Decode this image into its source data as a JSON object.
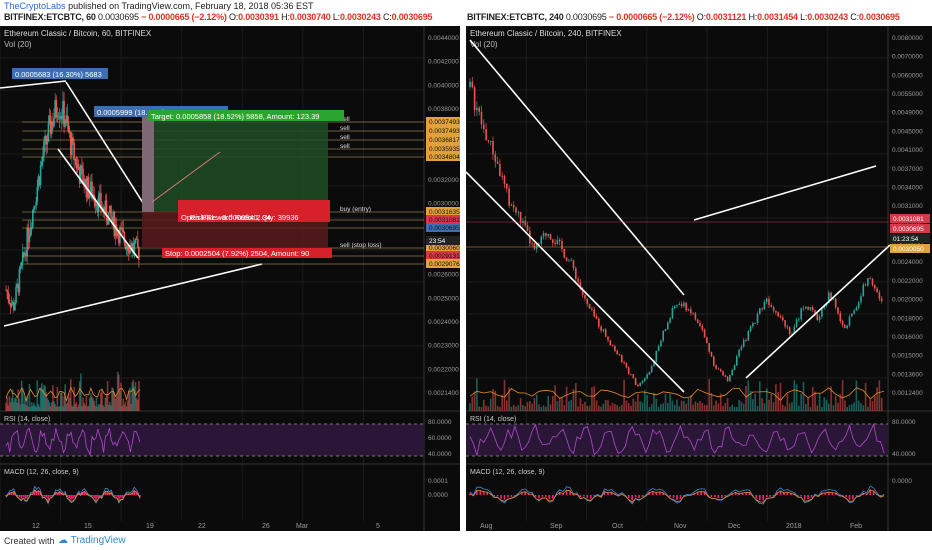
{
  "header": {
    "author": "TheCryptoLabs",
    "published": "published on TradingView.com, February 18, 2018 05:36 EST",
    "left_symbol": "BITFINEX:ETCBTC, 60",
    "right_symbol": "BITFINEX:ETCBTC, 240",
    "left_quote": {
      "last": "0.0030695",
      "change": "− 0.0000665 (−2.12%)",
      "o": "0.0030391",
      "h": "0.0030740",
      "l": "0.0030243",
      "c": "0.0030695"
    },
    "right_quote": {
      "last": "0.0030695",
      "change": "− 0.0000665 (−2.12%)",
      "o": "0.0031121",
      "h": "0.0031454",
      "l": "0.0030243",
      "c": "0.0030695"
    }
  },
  "footer": {
    "created": "Created with",
    "brand": "TradingView"
  },
  "colors": {
    "bg": "#0b0b0b",
    "up": "#26a69a",
    "down": "#ef5350",
    "rsi": "#b04cc8",
    "macd_hist": "#ff1f7a",
    "grid": "#1c1c1c",
    "axis_text": "#9a9a9a",
    "trend": "#ffffff",
    "level": "#c9b060"
  },
  "chart_data": [
    {
      "type": "candlestick",
      "title": "Ethereum Classic / Bitcoin, 60, BITFINEX",
      "volume_label": "Vol (20)",
      "y_ticks": [
        "0.0044000",
        "0.0042000",
        "0.0040000",
        "0.0038000",
        "0.0036000",
        "0.0034000",
        "0.0032000",
        "0.0030000",
        "0.0028000",
        "0.0027000",
        "0.0026000",
        "0.0025000",
        "0.0024000",
        "0.0023000",
        "0.0022000",
        "0.0021400"
      ],
      "x_ticks": [
        "12",
        "15",
        "19",
        "22",
        "26",
        "Mar",
        "5"
      ],
      "ylim": [
        0.00211,
        0.00448
      ],
      "price_path": [
        0.0028,
        0.00268,
        0.00292,
        0.00318,
        0.00345,
        0.00372,
        0.00392,
        0.00408,
        0.00398,
        0.00375,
        0.0036,
        0.0035,
        0.00345,
        0.00336,
        0.0033,
        0.00322,
        0.00314,
        0.0031,
        0.00306
      ],
      "annotations": {
        "high_label": "0.0005683 (16.30%) 5683",
        "mid_label": "0.0005999 (18.52%) 5999",
        "target": "Target: 0.0005858 (18.52%) 5858, Amount: 123.39",
        "open_pl": "Open P&L: -0.0000940, Qty: 39936",
        "risk_reward": "Risk/Reward Ratio: 2.34",
        "stop": "Stop: 0.0002504 (7.92%) 2504, Amount: 90",
        "countdown": "23:54"
      },
      "levels": [
        {
          "label": "sell",
          "price": "0.0037493"
        },
        {
          "label": "sell",
          "price": "0.0037493"
        },
        {
          "label": "sell",
          "price": "0.0036817"
        },
        {
          "label": "sell",
          "price": "0.0035935"
        },
        {
          "label": "",
          "price": "0.0034804"
        },
        {
          "label": "buy (entry)",
          "price": "0.0031635"
        },
        {
          "label": "",
          "price": "0.0031081"
        },
        {
          "label": "",
          "price": "0.0030695"
        },
        {
          "label": "sell (stop loss)",
          "price": "0.0030060"
        },
        {
          "label": "",
          "price": "0.0029131"
        },
        {
          "label": "",
          "price": "0.0029076"
        }
      ],
      "rsi": {
        "label": "RSI (14, close)",
        "ticks": [
          "80.0000",
          "60.0000",
          "40.0000"
        ]
      },
      "macd": {
        "label": "MACD (12, 26, close, 9)",
        "ticks": [
          "0.0001",
          "0.0000"
        ]
      }
    },
    {
      "type": "candlestick",
      "title": "Ethereum Classic / Bitcoin, 240, BITFINEX",
      "volume_label": "Vol (20)",
      "y_ticks": [
        "0.0080000",
        "0.0070000",
        "0.0060000",
        "0.0055000",
        "0.0049000",
        "0.0045000",
        "0.0041000",
        "0.0037000",
        "0.0034000",
        "0.0031000",
        "0.0028000",
        "0.0026000",
        "0.0024000",
        "0.0022000",
        "0.0020000",
        "0.0018000",
        "0.0016000",
        "0.0015000",
        "0.0013600",
        "0.0012400"
      ],
      "x_ticks": [
        "Aug",
        "Sep",
        "Oct",
        "Nov",
        "Dec",
        "2018",
        "Feb"
      ],
      "price_path": [
        0.0072,
        0.0064,
        0.0058,
        0.005,
        0.0046,
        0.004,
        0.0044,
        0.0041,
        0.0037,
        0.003,
        0.0026,
        0.0022,
        0.0018,
        0.0014,
        0.0017,
        0.0024,
        0.003,
        0.0029,
        0.0025,
        0.0018,
        0.0015,
        0.0021,
        0.0026,
        0.0031,
        0.0028,
        0.0024,
        0.003,
        0.0027,
        0.0032,
        0.0025,
        0.0029,
        0.0036,
        0.003
      ],
      "price_labels": [
        "0.0031081",
        "0.0030695",
        "01:23:54",
        "0.0030050"
      ],
      "rsi": {
        "label": "RSI (14, close)",
        "ticks": [
          "80.0000",
          "40.0000"
        ]
      },
      "macd": {
        "label": "MACD (12, 26, close, 9)",
        "ticks": [
          "0.0000"
        ]
      }
    }
  ]
}
